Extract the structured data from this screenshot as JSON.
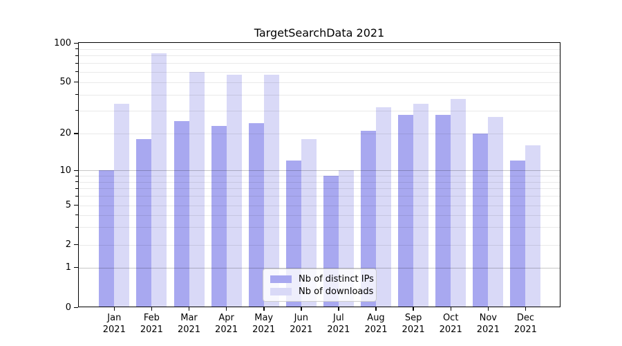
{
  "title": "TargetSearchData 2021",
  "legend": {
    "items": [
      {
        "label": "Nb of distinct IPs",
        "color": "#a8a8f0"
      },
      {
        "label": "Nb of downloads",
        "color": "#d9d9f7"
      }
    ]
  },
  "x_axis": {
    "months": [
      "Jan",
      "Feb",
      "Mar",
      "Apr",
      "May",
      "Jun",
      "Jul",
      "Aug",
      "Sep",
      "Oct",
      "Nov",
      "Dec"
    ],
    "year": "2021"
  },
  "y_axis": {
    "tick_labels": [
      "100",
      "50",
      "20",
      "10",
      "5",
      "2",
      "1",
      "0"
    ]
  },
  "chart_data": {
    "type": "bar",
    "title": "TargetSearchData 2021",
    "categories": [
      "Jan 2021",
      "Feb 2021",
      "Mar 2021",
      "Apr 2021",
      "May 2021",
      "Jun 2021",
      "Jul 2021",
      "Aug 2021",
      "Sep 2021",
      "Oct 2021",
      "Nov 2021",
      "Dec 2021"
    ],
    "series": [
      {
        "name": "Nb of distinct IPs",
        "color": "#a8a8f0",
        "values": [
          10,
          18,
          25,
          23,
          24,
          12,
          9,
          21,
          28,
          28,
          20,
          12
        ]
      },
      {
        "name": "Nb of downloads",
        "color": "#d9d9f7",
        "values": [
          34,
          83,
          60,
          57,
          57,
          18,
          10,
          32,
          34,
          37,
          27,
          16
        ]
      }
    ],
    "xlabel": "",
    "ylabel": "",
    "y_scale": "symlog",
    "y_ticks": [
      0,
      1,
      2,
      5,
      10,
      20,
      50,
      100
    ],
    "y_minor_ticks": [
      3,
      4,
      6,
      7,
      8,
      9,
      30,
      40,
      60,
      70,
      80,
      90
    ],
    "ylim": [
      0,
      100
    ],
    "grid": true,
    "legend_position": "lower center"
  }
}
